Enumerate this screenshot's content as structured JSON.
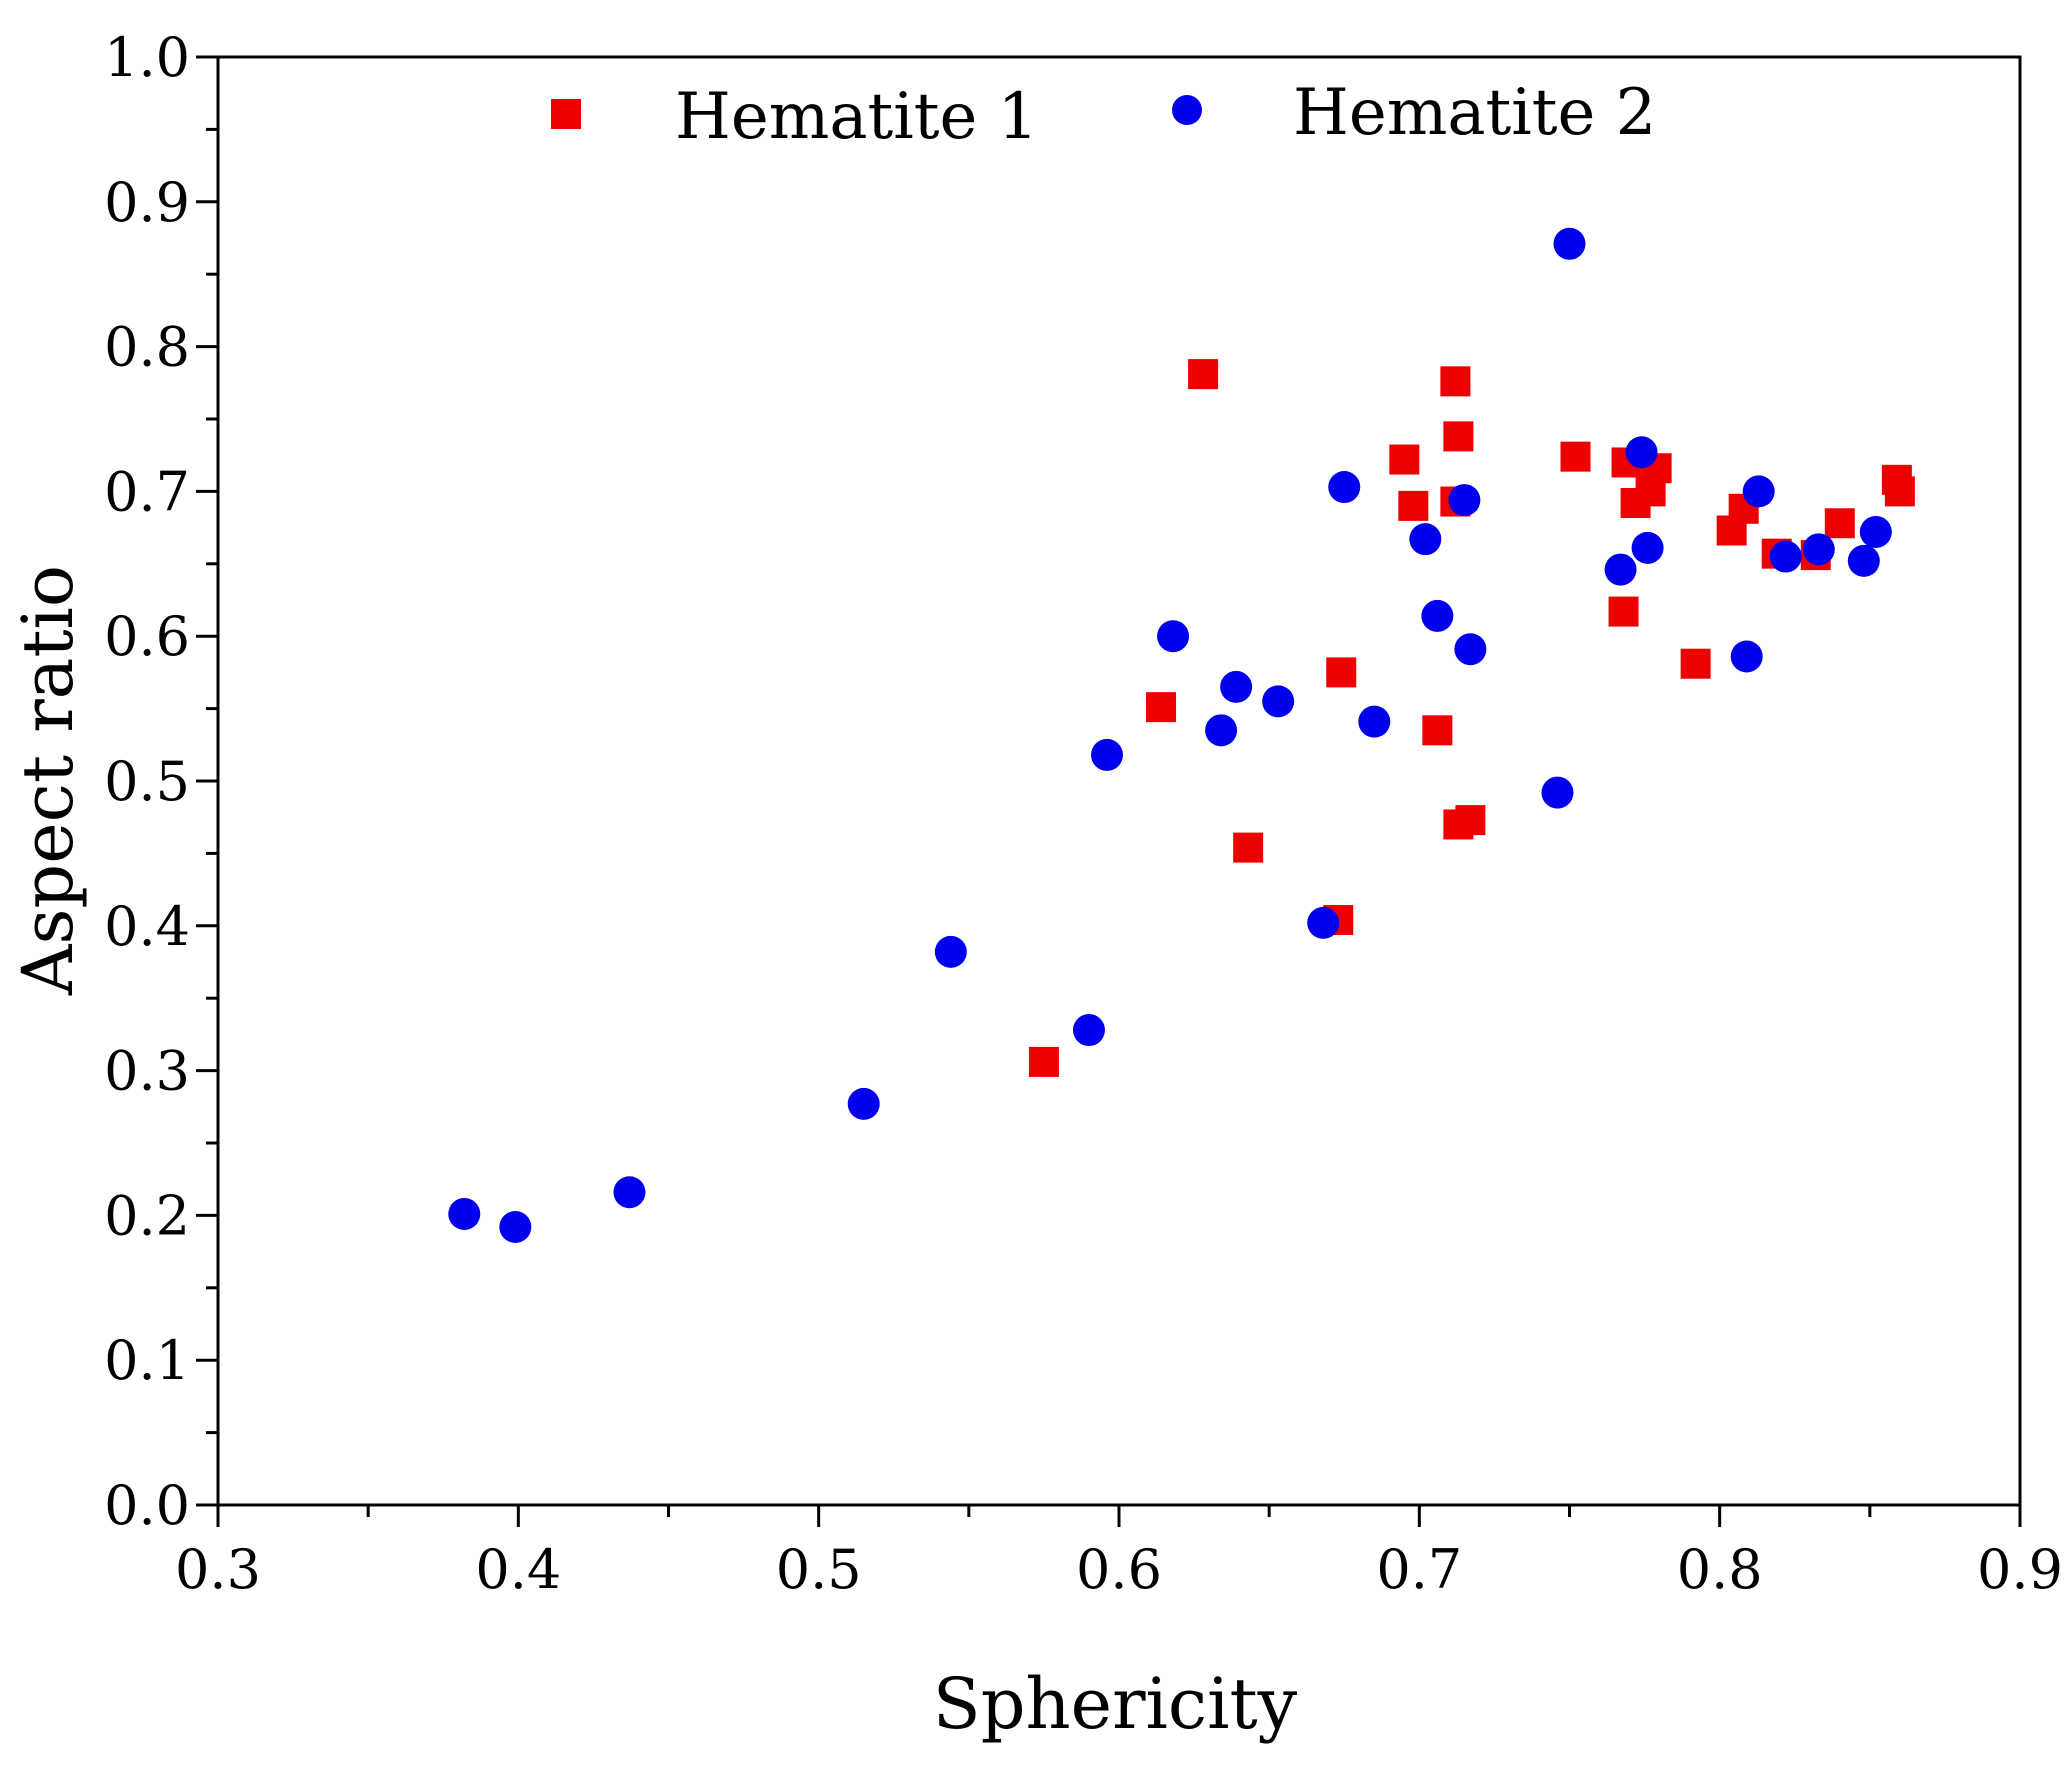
{
  "chart_data": {
    "type": "scatter",
    "xlabel": "Sphericity",
    "ylabel": "Aspect ratio",
    "xlim": [
      0.3,
      0.9
    ],
    "ylim": [
      0.0,
      1.0
    ],
    "xticks": [
      "0.3",
      "0.4",
      "0.5",
      "0.6",
      "0.7",
      "0.8",
      "0.9"
    ],
    "yticks": [
      "0.0",
      "0.1",
      "0.2",
      "0.3",
      "0.4",
      "0.5",
      "0.6",
      "0.7",
      "0.8",
      "0.9",
      "1.0"
    ],
    "grid": false,
    "legend_position": "top",
    "series": [
      {
        "name": "Hematite 1",
        "marker": "square",
        "color": "#ee0000",
        "points": [
          [
            0.628,
            0.781
          ],
          [
            0.712,
            0.776
          ],
          [
            0.713,
            0.738
          ],
          [
            0.695,
            0.722
          ],
          [
            0.752,
            0.724
          ],
          [
            0.769,
            0.72
          ],
          [
            0.779,
            0.716
          ],
          [
            0.698,
            0.69
          ],
          [
            0.712,
            0.693
          ],
          [
            0.772,
            0.692
          ],
          [
            0.777,
            0.7
          ],
          [
            0.859,
            0.708
          ],
          [
            0.86,
            0.7
          ],
          [
            0.808,
            0.688
          ],
          [
            0.804,
            0.673
          ],
          [
            0.84,
            0.678
          ],
          [
            0.819,
            0.657
          ],
          [
            0.832,
            0.656
          ],
          [
            0.768,
            0.617
          ],
          [
            0.792,
            0.581
          ],
          [
            0.674,
            0.575
          ],
          [
            0.614,
            0.551
          ],
          [
            0.706,
            0.535
          ],
          [
            0.713,
            0.47
          ],
          [
            0.717,
            0.473
          ],
          [
            0.643,
            0.454
          ],
          [
            0.673,
            0.404
          ],
          [
            0.575,
            0.306
          ]
        ]
      },
      {
        "name": "Hematite 2",
        "marker": "circle",
        "color": "#0000ee",
        "points": [
          [
            0.75,
            0.871
          ],
          [
            0.774,
            0.727
          ],
          [
            0.675,
            0.703
          ],
          [
            0.715,
            0.694
          ],
          [
            0.813,
            0.7
          ],
          [
            0.702,
            0.667
          ],
          [
            0.776,
            0.661
          ],
          [
            0.767,
            0.646
          ],
          [
            0.852,
            0.672
          ],
          [
            0.848,
            0.652
          ],
          [
            0.833,
            0.66
          ],
          [
            0.822,
            0.655
          ],
          [
            0.706,
            0.614
          ],
          [
            0.717,
            0.591
          ],
          [
            0.809,
            0.586
          ],
          [
            0.618,
            0.6
          ],
          [
            0.639,
            0.565
          ],
          [
            0.653,
            0.555
          ],
          [
            0.634,
            0.535
          ],
          [
            0.685,
            0.541
          ],
          [
            0.596,
            0.518
          ],
          [
            0.746,
            0.492
          ],
          [
            0.668,
            0.402
          ],
          [
            0.544,
            0.382
          ],
          [
            0.59,
            0.328
          ],
          [
            0.515,
            0.277
          ],
          [
            0.437,
            0.216
          ],
          [
            0.382,
            0.201
          ],
          [
            0.399,
            0.192
          ]
        ]
      }
    ]
  }
}
